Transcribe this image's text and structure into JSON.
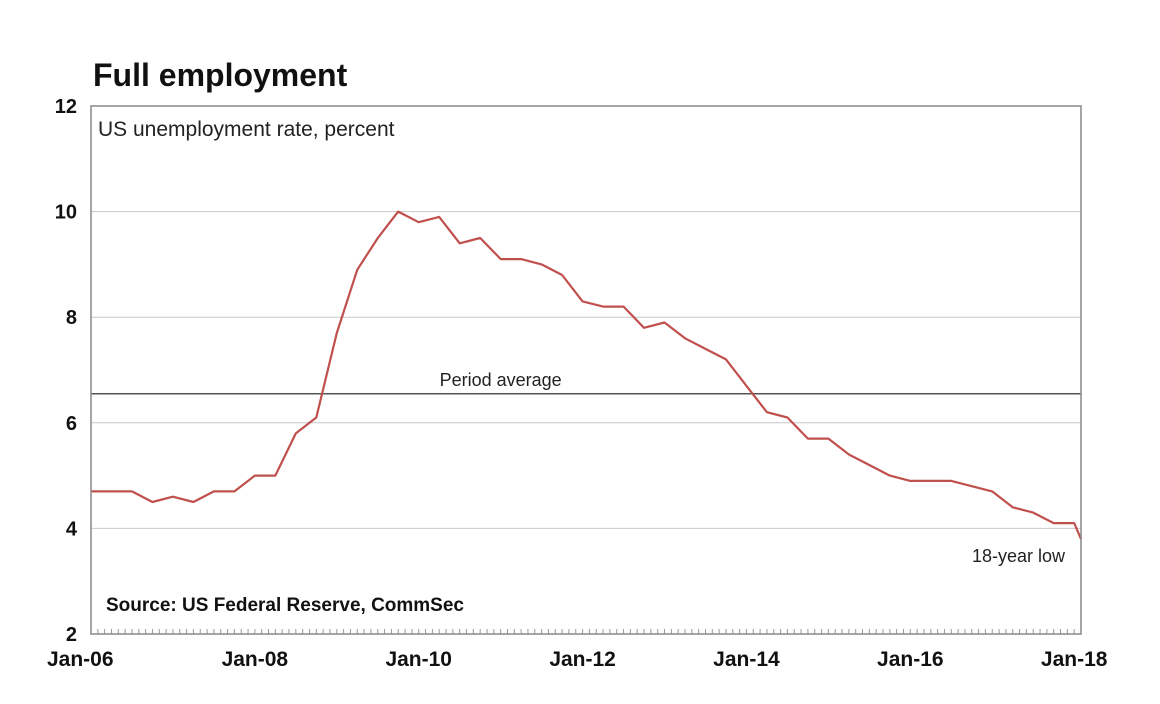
{
  "chart_data": {
    "type": "line",
    "title": "Full employment",
    "subtitle": "US unemployment rate, percent",
    "source": "Source: US Federal Reserve, CommSec",
    "xlabel": "",
    "ylabel": "",
    "ylim": [
      2,
      12
    ],
    "yticks": [
      2,
      4,
      6,
      8,
      10,
      12
    ],
    "xlim": [
      "2006-01",
      "2018-02"
    ],
    "xticks": [
      "Jan-06",
      "Jan-08",
      "Jan-10",
      "Jan-12",
      "Jan-14",
      "Jan-16",
      "Jan-18"
    ],
    "grid": true,
    "colors": {
      "series": "#c0504d",
      "average": "#555555",
      "grid": "#c8c8c8"
    },
    "reference_line": {
      "label": "Period average",
      "value": 6.55
    },
    "annotations": [
      {
        "text": "18-year low",
        "x": "2018-02",
        "y": 3.8
      }
    ],
    "series": [
      {
        "color": "#c0504d",
        "x": [
          "2006-01",
          "2006-04",
          "2006-07",
          "2006-10",
          "2007-01",
          "2007-04",
          "2007-07",
          "2007-10",
          "2008-01",
          "2008-04",
          "2008-07",
          "2008-10",
          "2009-01",
          "2009-04",
          "2009-07",
          "2009-10",
          "2010-01",
          "2010-04",
          "2010-07",
          "2010-10",
          "2011-01",
          "2011-04",
          "2011-07",
          "2011-10",
          "2012-01",
          "2012-04",
          "2012-07",
          "2012-10",
          "2013-01",
          "2013-04",
          "2013-07",
          "2013-10",
          "2014-01",
          "2014-04",
          "2014-07",
          "2014-10",
          "2015-01",
          "2015-04",
          "2015-07",
          "2015-10",
          "2016-01",
          "2016-04",
          "2016-07",
          "2016-10",
          "2017-01",
          "2017-04",
          "2017-07",
          "2017-10",
          "2018-01",
          "2018-02"
        ],
        "y": [
          4.7,
          4.7,
          4.7,
          4.5,
          4.6,
          4.5,
          4.7,
          4.7,
          5.0,
          5.0,
          5.8,
          6.1,
          7.7,
          8.9,
          9.5,
          10.0,
          9.8,
          9.9,
          9.4,
          9.5,
          9.1,
          9.1,
          9.0,
          8.8,
          8.3,
          8.2,
          8.2,
          7.8,
          7.9,
          7.6,
          7.4,
          7.2,
          6.7,
          6.2,
          6.1,
          5.7,
          5.7,
          5.4,
          5.2,
          5.0,
          4.9,
          4.9,
          4.9,
          4.8,
          4.7,
          4.4,
          4.3,
          4.1,
          4.1,
          3.8
        ]
      }
    ]
  }
}
